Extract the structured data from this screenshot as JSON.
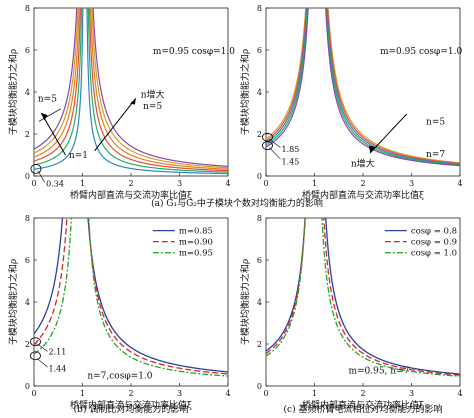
{
  "figure": {
    "caption_a": "(a) G₁与G₂中子模块个数对均衡能力的影响",
    "caption_b": "(b) 调制比对均衡能力的影响",
    "caption_c": "(c) 基频桥臂电流相位对均衡能力的影响"
  },
  "chart_data": [
    {
      "id": "a1",
      "type": "line",
      "xlabel": "桥臂内部直流与交流功率比值ξ",
      "ylabel": "子模块均衡能力之和ρ",
      "xlim": [
        0,
        4
      ],
      "ylim": [
        0,
        8
      ],
      "xticks": [
        "0",
        "1",
        "2",
        "3",
        "4"
      ],
      "yticks": [
        "0",
        "2",
        "4",
        "6",
        "8"
      ],
      "params_label": "m=0.95 cosφ=1.0",
      "annotations": [
        "n=5",
        "n增大",
        "n=5",
        "n=1",
        "0.34"
      ],
      "pole_x": 1.05,
      "series": [
        {
          "color": "#2e86c1",
          "k": 0.34
        },
        {
          "color": "#27ae60",
          "k": 0.55
        },
        {
          "color": "#e74c3c",
          "k": 0.75
        },
        {
          "color": "#e67e22",
          "k": 0.95
        },
        {
          "color": "#c9a227",
          "k": 1.15
        },
        {
          "color": "#8e44ad",
          "k": 1.35
        }
      ]
    },
    {
      "id": "a2",
      "type": "line",
      "xlabel": "桥臂内部直流与交流功率比值ξ",
      "ylabel": "子模块均衡能力之和ρ",
      "xlim": [
        0,
        4
      ],
      "ylim": [
        0,
        8
      ],
      "xticks": [
        "0",
        "1",
        "2",
        "3",
        "4"
      ],
      "yticks": [
        "0",
        "2",
        "4",
        "6",
        "8"
      ],
      "params_label": "m=0.95 cosφ=1.0",
      "annotations": [
        "1.85",
        "1.45",
        "n=5",
        "n增大",
        "n=7"
      ],
      "pole_x": 1.05,
      "series": [
        {
          "color": "#c9a227",
          "k": 1.85
        },
        {
          "color": "#e74c3c",
          "k": 1.75
        },
        {
          "color": "#2e86c1",
          "k": 1.65
        },
        {
          "color": "#27ae60",
          "k": 1.55
        },
        {
          "color": "#8e44ad",
          "k": 1.45
        }
      ]
    },
    {
      "id": "b",
      "type": "line",
      "xlabel": "桥臂内部直流与交流功率比值ξ",
      "ylabel": "子模块均衡能力之和ρ",
      "xlim": [
        0,
        4
      ],
      "ylim": [
        0,
        8
      ],
      "xticks": [
        "0",
        "1",
        "2",
        "3",
        "4"
      ],
      "yticks": [
        "0",
        "2",
        "4",
        "6",
        "8"
      ],
      "params_label": "n=7,cosφ=1.0",
      "annotations": [
        "2.11",
        "1.44"
      ],
      "legend": {
        "position": "top-right",
        "entries": [
          "m=0.85",
          "m=0.90",
          "m=0.95"
        ]
      },
      "series": [
        {
          "name": "m=0.85",
          "color": "#2c3e9e",
          "dash": "",
          "k": 2.11,
          "pole": 0.85
        },
        {
          "name": "m=0.90",
          "color": "#d62728",
          "dash": "6,3",
          "k": 1.78,
          "pole": 0.9
        },
        {
          "name": "m=0.95",
          "color": "#2ca02c",
          "dash": "6,2,2,2",
          "k": 1.44,
          "pole": 0.95
        }
      ]
    },
    {
      "id": "c",
      "type": "line",
      "xlabel": "桥臂内部直流与交流功率比值ξ",
      "ylabel": "子模块均衡能力之和ρ",
      "xlim": [
        0,
        4
      ],
      "ylim": [
        0,
        8
      ],
      "xticks": [
        "0",
        "1",
        "2",
        "3",
        "4"
      ],
      "yticks": [
        "0",
        "2",
        "4",
        "6",
        "8"
      ],
      "params_label": "m=0.95, n=7",
      "legend": {
        "position": "top-right",
        "entries": [
          "cosφ = 0.8",
          "cosφ = 0.9",
          "cosφ = 1.0"
        ]
      },
      "series": [
        {
          "name": "cosφ = 0.8",
          "color": "#2c3e9e",
          "dash": "",
          "k": 1.7,
          "pole": 1.02
        },
        {
          "name": "cosφ = 0.9",
          "color": "#d62728",
          "dash": "6,3",
          "k": 1.55,
          "pole": 1.0
        },
        {
          "name": "cosφ = 1.0",
          "color": "#2ca02c",
          "dash": "6,2,2,2",
          "k": 1.4,
          "pole": 0.98
        }
      ]
    }
  ]
}
